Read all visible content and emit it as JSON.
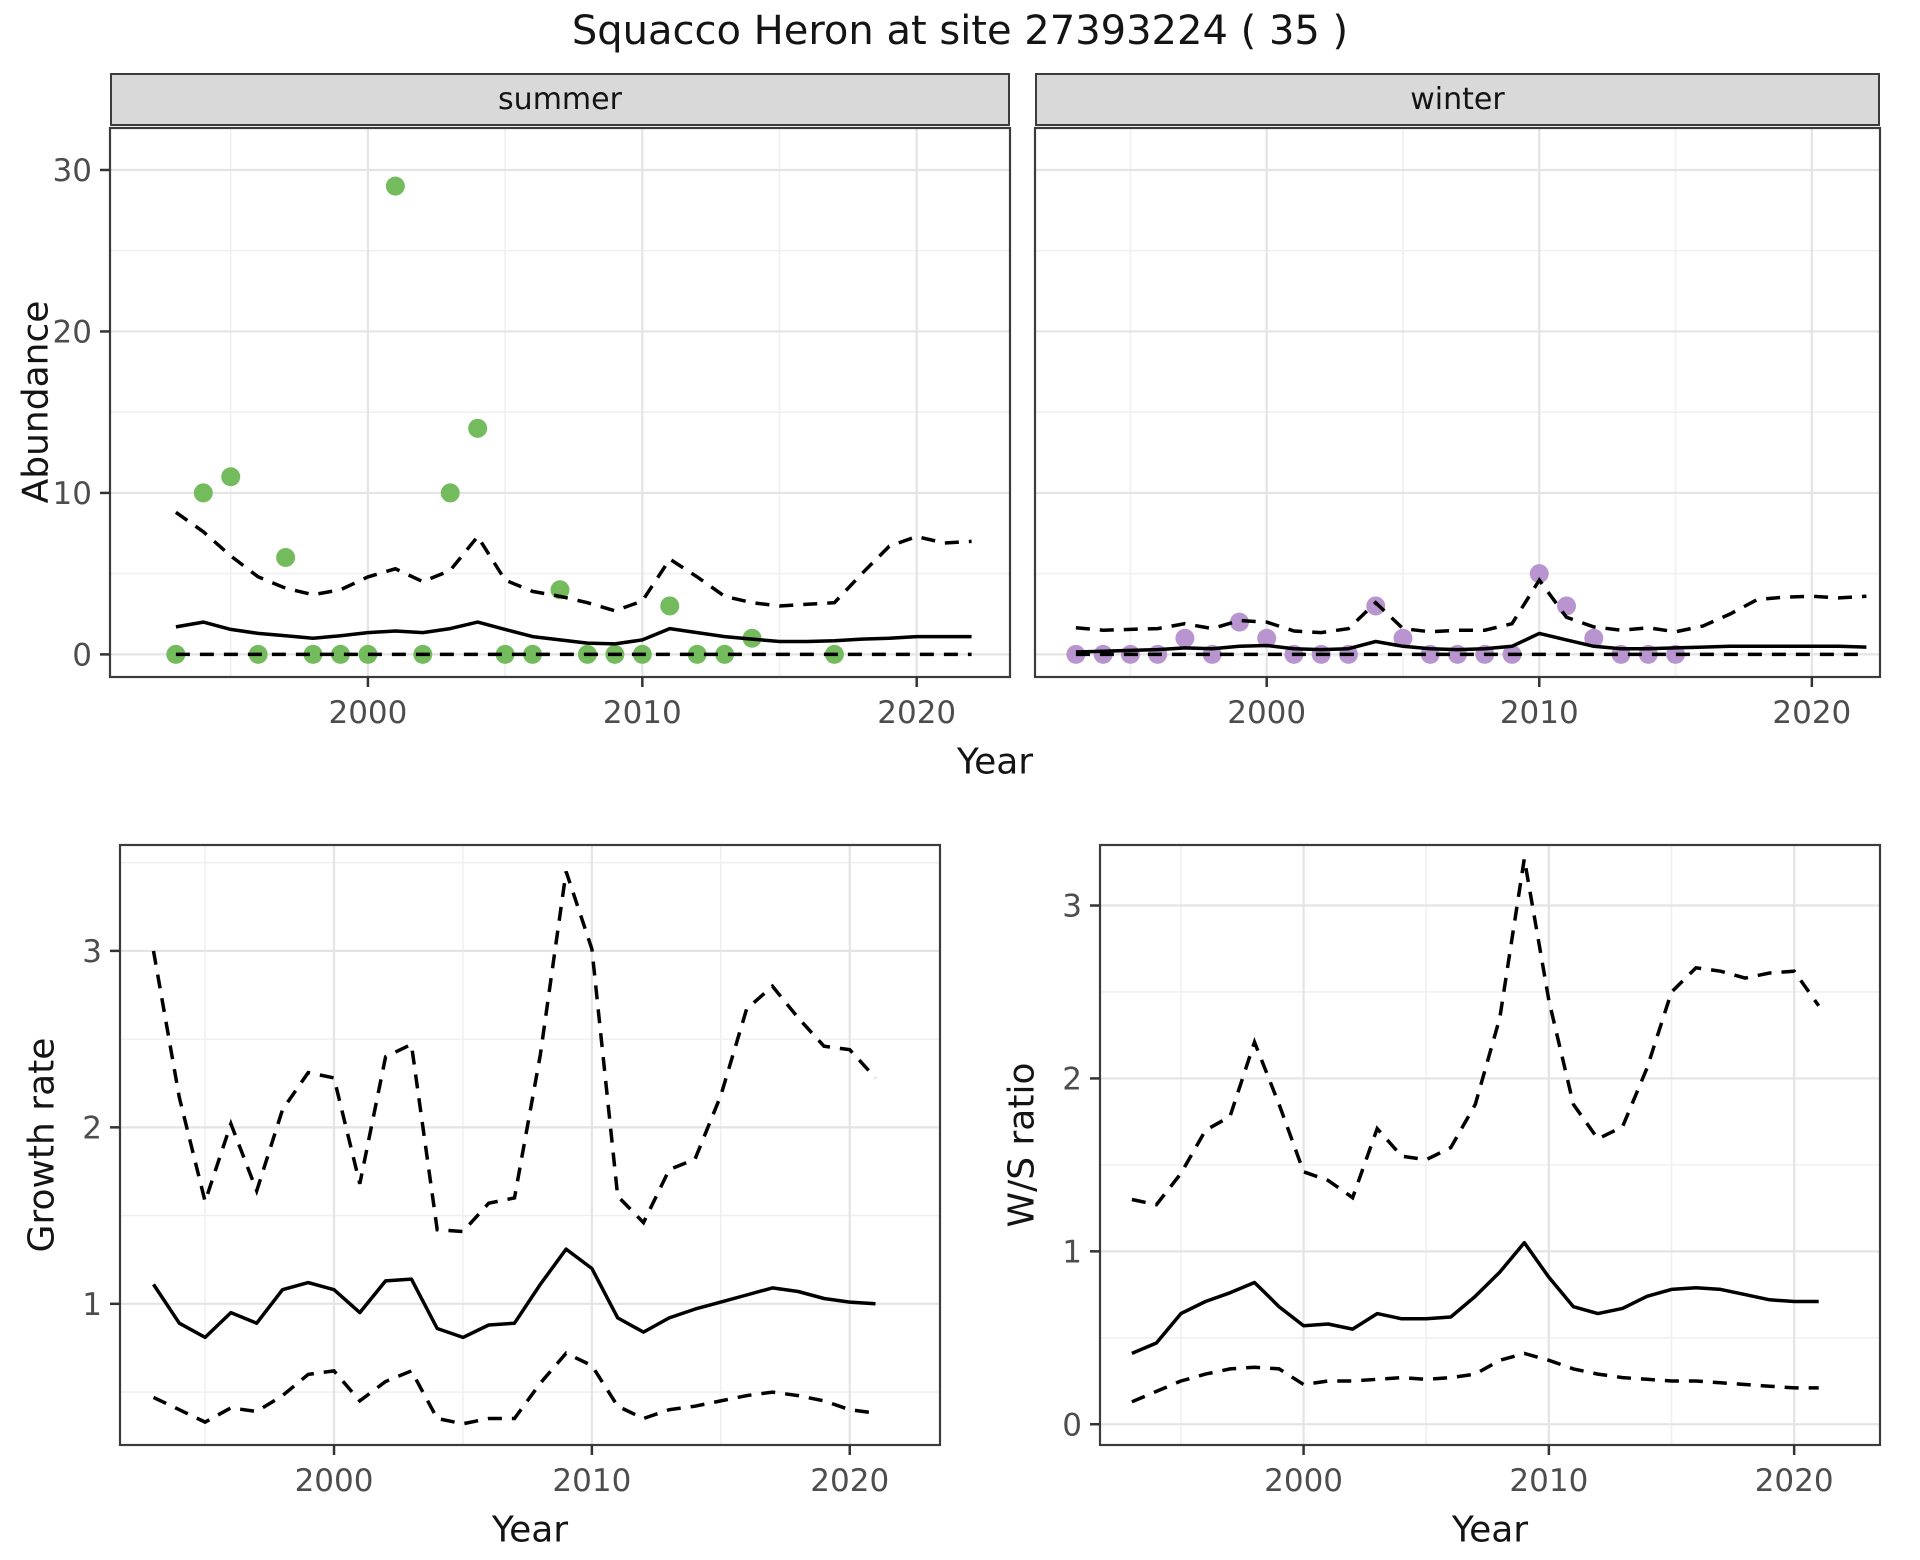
{
  "title": "Squacco Heron at site 27393224 ( 35 )",
  "facets": {
    "summer": "summer",
    "winter": "winter"
  },
  "axis_titles": {
    "abundance": "Abundance",
    "year_top": "Year",
    "growth": "Growth rate",
    "year_growth": "Year",
    "ws": "W/S ratio",
    "year_ws": "Year"
  },
  "colors": {
    "summer_point": "#74BB5E",
    "winter_point": "#B995CF",
    "line": "#000000",
    "strip_bg": "#d9d9d9",
    "panel_border": "#3c3c3c",
    "grid_major": "#e4e4e4",
    "grid_minor": "#f0f0f0",
    "tick_label": "#4d4d4d"
  },
  "chart_data": [
    {
      "id": "abundance-summer",
      "type": "scatter",
      "facet_label": "summer",
      "xlabel": "Year",
      "ylabel": "Abundance",
      "xlim": [
        1990.6,
        2023.4
      ],
      "ylim": [
        -1.4,
        32.6
      ],
      "xticks": [
        2000,
        2010,
        2020
      ],
      "xminor": [
        1995,
        2005,
        2015
      ],
      "yticks": [
        0,
        10,
        20,
        30
      ],
      "yminor": [
        5,
        15,
        25
      ],
      "point_color": "#74BB5E",
      "obs": {
        "years": [
          1993,
          1994,
          1995,
          1996,
          1997,
          1998,
          1999,
          2000,
          2001,
          2002,
          2003,
          2004,
          2005,
          2006,
          2007,
          2008,
          2009,
          2010,
          2011,
          2012,
          2013,
          2014,
          2017
        ],
        "values": [
          0,
          10,
          11,
          0,
          6,
          0,
          0,
          0,
          29,
          0,
          10,
          14,
          0,
          0,
          4,
          0,
          0,
          0,
          3,
          0,
          0,
          1,
          0
        ]
      },
      "fit_years": [
        1993,
        1994,
        1995,
        1996,
        1997,
        1998,
        1999,
        2000,
        2001,
        2002,
        2003,
        2004,
        2005,
        2006,
        2007,
        2008,
        2009,
        2010,
        2011,
        2012,
        2013,
        2014,
        2015,
        2016,
        2017,
        2018,
        2019,
        2020,
        2021,
        2022
      ],
      "mean": [
        1.7,
        2.0,
        1.55,
        1.3,
        1.15,
        1.0,
        1.15,
        1.35,
        1.45,
        1.35,
        1.6,
        2.0,
        1.55,
        1.1,
        0.9,
        0.7,
        0.65,
        0.9,
        1.6,
        1.35,
        1.1,
        0.95,
        0.8,
        0.8,
        0.85,
        0.95,
        1.0,
        1.1,
        1.1,
        1.1
      ],
      "upper": [
        8.8,
        7.6,
        6.1,
        4.8,
        4.1,
        3.7,
        4.0,
        4.8,
        5.3,
        4.5,
        5.2,
        7.3,
        4.6,
        3.9,
        3.6,
        3.2,
        2.7,
        3.3,
        5.9,
        4.8,
        3.6,
        3.2,
        3.0,
        3.1,
        3.2,
        5.0,
        6.7,
        7.3,
        6.9,
        7.0
      ],
      "lower": [
        0,
        0,
        0,
        0,
        0,
        0,
        0,
        0,
        0,
        0,
        0,
        0,
        0,
        0,
        0,
        0,
        0,
        0,
        0,
        0,
        0,
        0,
        0,
        0,
        0,
        0,
        0,
        0,
        0,
        0
      ]
    },
    {
      "id": "abundance-winter",
      "type": "scatter",
      "facet_label": "winter",
      "xlabel": "Year",
      "ylabel": "Abundance",
      "xlim": [
        1991.5,
        2022.5
      ],
      "ylim": [
        -1.4,
        32.6
      ],
      "xticks": [
        2000,
        2010,
        2020
      ],
      "xminor": [
        1995,
        2005,
        2015
      ],
      "yticks": [
        0,
        10,
        20,
        30
      ],
      "yminor": [
        5,
        15,
        25
      ],
      "point_color": "#B995CF",
      "obs": {
        "years": [
          1993,
          1994,
          1995,
          1996,
          1997,
          1998,
          1999,
          2000,
          2001,
          2002,
          2003,
          2004,
          2005,
          2006,
          2007,
          2008,
          2009,
          2010,
          2011,
          2012,
          2013,
          2014,
          2015
        ],
        "values": [
          0,
          0,
          0,
          0,
          1,
          0,
          2,
          1,
          0,
          0,
          0,
          3,
          1,
          0,
          0,
          0,
          0,
          5,
          3,
          1,
          0,
          0,
          0
        ]
      },
      "fit_years": [
        1993,
        1994,
        1995,
        1996,
        1997,
        1998,
        1999,
        2000,
        2001,
        2002,
        2003,
        2004,
        2005,
        2006,
        2007,
        2008,
        2009,
        2010,
        2011,
        2012,
        2013,
        2014,
        2015,
        2016,
        2017,
        2018,
        2019,
        2020,
        2021,
        2022
      ],
      "mean": [
        0.15,
        0.2,
        0.25,
        0.3,
        0.4,
        0.35,
        0.5,
        0.55,
        0.35,
        0.3,
        0.35,
        0.8,
        0.5,
        0.35,
        0.3,
        0.35,
        0.5,
        1.3,
        0.9,
        0.5,
        0.35,
        0.35,
        0.4,
        0.45,
        0.5,
        0.5,
        0.5,
        0.5,
        0.5,
        0.45
      ],
      "upper": [
        1.65,
        1.5,
        1.55,
        1.6,
        1.9,
        1.6,
        2.1,
        2.0,
        1.45,
        1.35,
        1.6,
        3.2,
        1.6,
        1.4,
        1.5,
        1.5,
        1.9,
        4.6,
        2.3,
        1.7,
        1.5,
        1.65,
        1.4,
        1.75,
        2.5,
        3.4,
        3.55,
        3.6,
        3.5,
        3.6
      ],
      "lower": [
        0,
        0,
        0,
        0,
        0,
        0,
        0,
        0,
        0,
        0,
        0,
        0,
        0,
        0,
        0,
        0,
        0,
        0,
        0,
        0,
        0,
        0,
        0,
        0,
        0,
        0,
        0,
        0,
        0,
        0
      ]
    },
    {
      "id": "growth-rate",
      "type": "line",
      "xlabel": "Year",
      "ylabel": "Growth rate",
      "xlim": [
        1991.7,
        2023.5
      ],
      "ylim": [
        0.2,
        3.6
      ],
      "xticks": [
        2000,
        2010,
        2020
      ],
      "xminor": [
        1995,
        2005,
        2015
      ],
      "yticks": [
        1,
        2,
        3
      ],
      "yminor": [
        0.5,
        1.5,
        2.5,
        3.5
      ],
      "fit_years": [
        1993,
        1994,
        1995,
        1996,
        1997,
        1998,
        1999,
        2000,
        2001,
        2002,
        2003,
        2004,
        2005,
        2006,
        2007,
        2008,
        2009,
        2010,
        2011,
        2012,
        2013,
        2014,
        2015,
        2016,
        2017,
        2018,
        2019,
        2020,
        2021
      ],
      "mean": [
        1.11,
        0.89,
        0.81,
        0.95,
        0.89,
        1.08,
        1.12,
        1.08,
        0.95,
        1.13,
        1.14,
        0.86,
        0.81,
        0.88,
        0.89,
        1.11,
        1.31,
        1.2,
        0.92,
        0.84,
        0.92,
        0.97,
        1.01,
        1.05,
        1.09,
        1.07,
        1.03,
        1.01,
        1.0
      ],
      "upper": [
        3.0,
        2.17,
        1.58,
        2.02,
        1.64,
        2.1,
        2.31,
        2.28,
        1.68,
        2.4,
        2.47,
        1.42,
        1.41,
        1.57,
        1.6,
        2.41,
        3.45,
        3.01,
        1.61,
        1.46,
        1.76,
        1.82,
        2.18,
        2.67,
        2.8,
        2.62,
        2.46,
        2.44,
        2.28
      ],
      "lower": [
        0.47,
        0.4,
        0.33,
        0.41,
        0.39,
        0.48,
        0.6,
        0.62,
        0.45,
        0.56,
        0.62,
        0.35,
        0.32,
        0.35,
        0.35,
        0.55,
        0.72,
        0.65,
        0.42,
        0.35,
        0.4,
        0.42,
        0.45,
        0.48,
        0.5,
        0.48,
        0.45,
        0.4,
        0.38
      ]
    },
    {
      "id": "ws-ratio",
      "type": "line",
      "xlabel": "Year",
      "ylabel": "W/S ratio",
      "xlim": [
        1991.7,
        2023.5
      ],
      "ylim": [
        -0.12,
        3.35
      ],
      "xticks": [
        2000,
        2010,
        2020
      ],
      "xminor": [
        1995,
        2005,
        2015
      ],
      "yticks": [
        0,
        1,
        2,
        3
      ],
      "yminor": [
        0.5,
        1.5,
        2.5
      ],
      "fit_years": [
        1993,
        1994,
        1995,
        1996,
        1997,
        1998,
        1999,
        2000,
        2001,
        2002,
        2003,
        2004,
        2005,
        2006,
        2007,
        2008,
        2009,
        2010,
        2011,
        2012,
        2013,
        2014,
        2015,
        2016,
        2017,
        2018,
        2019,
        2020,
        2021
      ],
      "mean": [
        0.41,
        0.47,
        0.64,
        0.71,
        0.76,
        0.82,
        0.68,
        0.57,
        0.58,
        0.55,
        0.64,
        0.61,
        0.61,
        0.62,
        0.74,
        0.88,
        1.05,
        0.85,
        0.68,
        0.64,
        0.67,
        0.74,
        0.78,
        0.79,
        0.78,
        0.75,
        0.72,
        0.71,
        0.71
      ],
      "upper": [
        1.3,
        1.27,
        1.45,
        1.7,
        1.78,
        2.21,
        1.85,
        1.46,
        1.41,
        1.31,
        1.71,
        1.55,
        1.53,
        1.6,
        1.85,
        2.35,
        3.27,
        2.45,
        1.85,
        1.65,
        1.72,
        2.06,
        2.5,
        2.64,
        2.62,
        2.58,
        2.61,
        2.62,
        2.42
      ],
      "lower": [
        0.13,
        0.19,
        0.25,
        0.29,
        0.32,
        0.33,
        0.32,
        0.23,
        0.25,
        0.25,
        0.26,
        0.27,
        0.26,
        0.27,
        0.29,
        0.37,
        0.41,
        0.37,
        0.32,
        0.29,
        0.27,
        0.26,
        0.25,
        0.25,
        0.24,
        0.23,
        0.22,
        0.21,
        0.21
      ]
    }
  ]
}
